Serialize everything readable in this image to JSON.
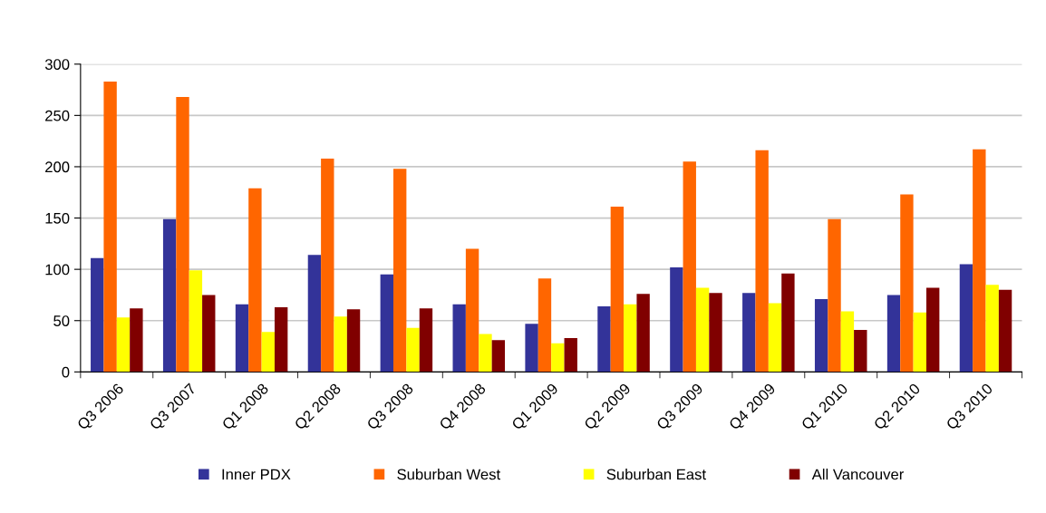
{
  "chart_data": {
    "type": "bar",
    "categories": [
      "Q3 2006",
      "Q3 2007",
      "Q1 2008",
      "Q2 2008",
      "Q3 2008",
      "Q4 2008",
      "Q1 2009",
      "Q2 2009",
      "Q3 2009",
      "Q4 2009",
      "Q1 2010",
      "Q2 2010",
      "Q3 2010"
    ],
    "series": [
      {
        "name": "Inner PDX",
        "color": "#333399",
        "values": [
          111,
          149,
          66,
          114,
          95,
          66,
          47,
          64,
          102,
          77,
          71,
          75,
          105
        ]
      },
      {
        "name": "Suburban West",
        "color": "#ff6600",
        "values": [
          283,
          268,
          179,
          208,
          198,
          120,
          91,
          161,
          205,
          216,
          149,
          173,
          217
        ]
      },
      {
        "name": "Suburban East",
        "color": "#ffff00",
        "values": [
          53,
          99,
          39,
          54,
          43,
          37,
          28,
          66,
          82,
          67,
          59,
          58,
          85
        ]
      },
      {
        "name": "All Vancouver",
        "color": "#800000",
        "values": [
          62,
          75,
          63,
          61,
          62,
          31,
          33,
          76,
          77,
          96,
          41,
          82,
          80
        ]
      }
    ],
    "ylim": [
      0,
      300
    ],
    "yticks": [
      0,
      50,
      100,
      150,
      200,
      250,
      300
    ],
    "grid": "y",
    "legend": "bottom"
  }
}
